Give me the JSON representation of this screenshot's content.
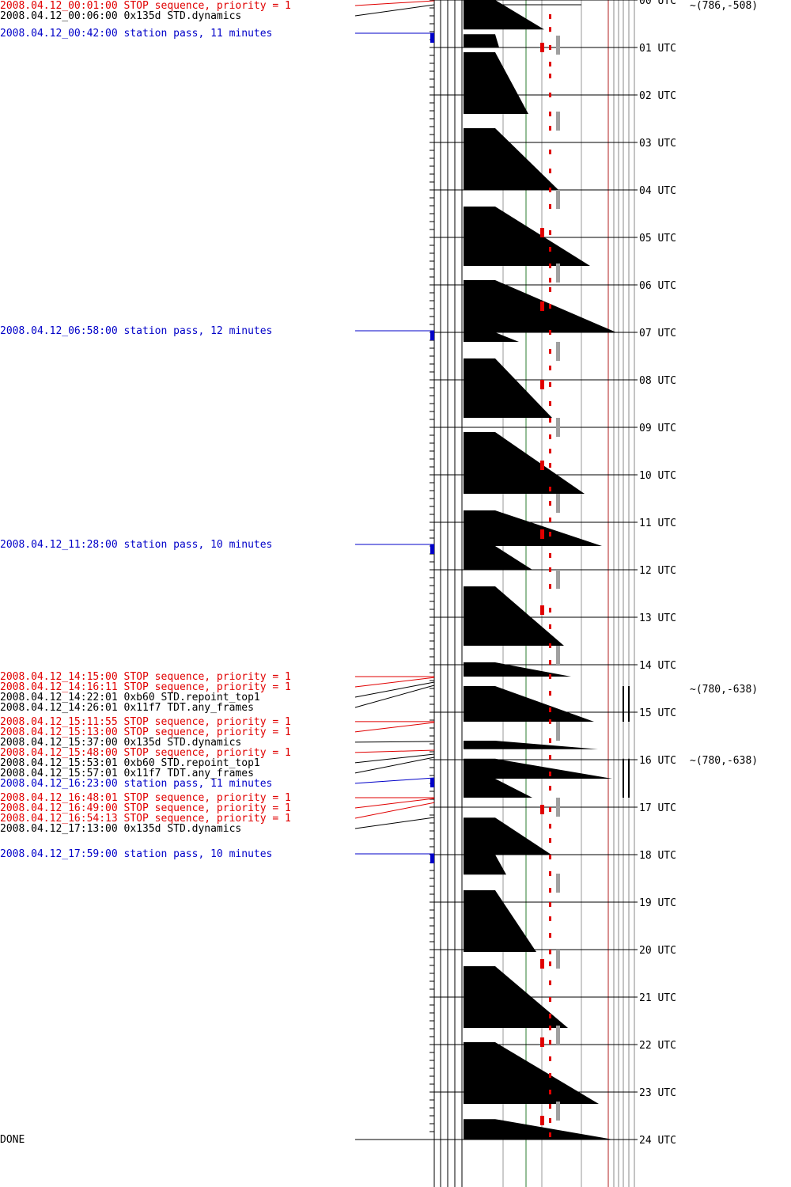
{
  "colors": {
    "stop": "#e00000",
    "command": "#000000",
    "station": "#0000c8",
    "grid_gray": "#999999",
    "grid_green": "#2e7d32",
    "marker_gray": "#a0a0a0",
    "marker_red": "#e00000"
  },
  "events": [
    {
      "time": "00:01:00",
      "text": "2008.04.12_00:01:00 STOP sequence, priority = 1",
      "kind": "stop"
    },
    {
      "time": "00:06:00",
      "text": "2008.04.12_00:06:00 0x135d STD.dynamics",
      "kind": "command"
    },
    {
      "time": "00:42:00",
      "text": "2008.04.12_00:42:00 station pass, 11 minutes",
      "kind": "station"
    },
    {
      "time": "06:58:00",
      "text": "2008.04.12_06:58:00 station pass, 12 minutes",
      "kind": "station"
    },
    {
      "time": "11:28:00",
      "text": "2008.04.12_11:28:00 station pass, 10 minutes",
      "kind": "station"
    },
    {
      "time": "14:15:00",
      "text": "2008.04.12_14:15:00 STOP sequence, priority = 1",
      "kind": "stop"
    },
    {
      "time": "14:16:11",
      "text": "2008.04.12_14:16:11 STOP sequence, priority = 1",
      "kind": "stop"
    },
    {
      "time": "14:22:01",
      "text": "2008.04.12_14:22:01  0xb60 STD.repoint_top1",
      "kind": "command"
    },
    {
      "time": "14:26:01",
      "text": "2008.04.12_14:26:01 0x11f7 TDT.any_frames",
      "kind": "command"
    },
    {
      "time": "15:11:55",
      "text": "2008.04.12_15:11:55 STOP sequence, priority = 1",
      "kind": "stop"
    },
    {
      "time": "15:13:00",
      "text": "2008.04.12_15:13:00 STOP sequence, priority = 1",
      "kind": "stop"
    },
    {
      "time": "15:37:00",
      "text": "2008.04.12_15:37:00 0x135d STD.dynamics",
      "kind": "command"
    },
    {
      "time": "15:48:00",
      "text": "2008.04.12_15:48:00 STOP sequence, priority = 1",
      "kind": "stop"
    },
    {
      "time": "15:53:01",
      "text": "2008.04.12_15:53:01  0xb60 STD.repoint_top1",
      "kind": "command"
    },
    {
      "time": "15:57:01",
      "text": "2008.04.12_15:57:01 0x11f7 TDT.any_frames",
      "kind": "command"
    },
    {
      "time": "16:23:00",
      "text": "2008.04.12_16:23:00 station pass, 11 minutes",
      "kind": "station"
    },
    {
      "time": "16:48:01",
      "text": "2008.04.12_16:48:01 STOP sequence, priority = 1",
      "kind": "stop"
    },
    {
      "time": "16:49:00",
      "text": "2008.04.12_16:49:00 STOP sequence, priority = 1",
      "kind": "stop"
    },
    {
      "time": "16:54:13",
      "text": "2008.04.12_16:54:13 STOP sequence, priority = 1",
      "kind": "stop"
    },
    {
      "time": "17:13:00",
      "text": "2008.04.12_17:13:00 0x135d STD.dynamics",
      "kind": "command"
    },
    {
      "time": "17:59:00",
      "text": "2008.04.12_17:59:00 station pass, 10 minutes",
      "kind": "station"
    },
    {
      "time": "24:00:00",
      "text": "DONE",
      "kind": "command"
    }
  ],
  "hour_labels": [
    "00 UTC",
    "01 UTC",
    "02 UTC",
    "03 UTC",
    "04 UTC",
    "05 UTC",
    "06 UTC",
    "07 UTC",
    "08 UTC",
    "09 UTC",
    "10 UTC",
    "11 UTC",
    "12 UTC",
    "13 UTC",
    "14 UTC",
    "15 UTC",
    "16 UTC",
    "17 UTC",
    "18 UTC",
    "19 UTC",
    "20 UTC",
    "21 UTC",
    "22 UTC",
    "23 UTC",
    "24 UTC"
  ],
  "coordinates": [
    {
      "hour": 0.0,
      "text": "~(786,-508)"
    },
    {
      "hour": 14.4,
      "text": "~(780,-638)"
    },
    {
      "hour": 15.9,
      "text": "~(780,-638)"
    }
  ],
  "chart_data": {
    "type": "timeline",
    "x_unit": "hours UTC",
    "y_range": [
      0,
      24
    ],
    "sawtooth_segments": [
      {
        "start": 0.0,
        "end": 0.62,
        "level_start": 0.0,
        "level_end": 0.62
      },
      {
        "start": 0.72,
        "end": 1.0,
        "level_start": 0.0,
        "level_end": 0.05
      },
      {
        "start": 1.1,
        "end": 2.4,
        "level_start": 0.0,
        "level_end": 0.42
      },
      {
        "start": 2.7,
        "end": 4.0,
        "level_start": 0.0,
        "level_end": 0.8
      },
      {
        "start": 4.35,
        "end": 5.6,
        "level_start": 0.0,
        "level_end": 1.2
      },
      {
        "start": 5.9,
        "end": 7.0,
        "level_start": 0.0,
        "level_end": 1.53
      },
      {
        "start": 7.0,
        "end": 7.2,
        "level_start": 0.0,
        "level_end": 0.3
      },
      {
        "start": 7.55,
        "end": 8.8,
        "level_start": 0.0,
        "level_end": 0.72
      },
      {
        "start": 9.1,
        "end": 10.4,
        "level_start": 0.0,
        "level_end": 1.13
      },
      {
        "start": 10.75,
        "end": 11.5,
        "level_start": 0.0,
        "level_end": 1.35
      },
      {
        "start": 11.5,
        "end": 12.0,
        "level_start": 0.0,
        "level_end": 0.47
      },
      {
        "start": 12.35,
        "end": 13.6,
        "level_start": 0.0,
        "level_end": 0.87
      },
      {
        "start": 13.95,
        "end": 14.25,
        "level_start": 0.0,
        "level_end": 0.96
      },
      {
        "start": 14.45,
        "end": 15.2,
        "level_start": 0.0,
        "level_end": 1.25
      },
      {
        "start": 15.6,
        "end": 15.78,
        "level_start": 0.0,
        "level_end": 1.3
      },
      {
        "start": 15.98,
        "end": 16.4,
        "level_start": 0.0,
        "level_end": 1.48
      },
      {
        "start": 16.4,
        "end": 16.8,
        "level_start": 0.0,
        "level_end": 0.47
      },
      {
        "start": 17.22,
        "end": 18.0,
        "level_start": 0.0,
        "level_end": 0.71
      },
      {
        "start": 18.0,
        "end": 18.42,
        "level_start": 0.0,
        "level_end": 0.14
      },
      {
        "start": 18.75,
        "end": 20.05,
        "level_start": 0.0,
        "level_end": 0.52
      },
      {
        "start": 20.35,
        "end": 21.65,
        "level_start": 0.0,
        "level_end": 0.92
      },
      {
        "start": 21.95,
        "end": 23.25,
        "level_start": 0.0,
        "level_end": 1.31
      },
      {
        "start": 23.57,
        "end": 24.0,
        "level_start": 0.0,
        "level_end": 1.49
      }
    ],
    "red_ticks": [
      {
        "hour": 0.35,
        "thick": false
      },
      {
        "hour": 0.62,
        "thick": false
      },
      {
        "hour": 1.0,
        "thick": true
      },
      {
        "hour": 1.35,
        "thick": false
      },
      {
        "hour": 1.6,
        "thick": false
      },
      {
        "hour": 2.0,
        "thick": false
      },
      {
        "hour": 2.4,
        "thick": false
      },
      {
        "hour": 2.7,
        "thick": false
      },
      {
        "hour": 3.2,
        "thick": false
      },
      {
        "hour": 3.6,
        "thick": false
      },
      {
        "hour": 4.0,
        "thick": false
      },
      {
        "hour": 4.35,
        "thick": false
      },
      {
        "hour": 4.9,
        "thick": true
      },
      {
        "hour": 5.25,
        "thick": false
      },
      {
        "hour": 5.6,
        "thick": false
      },
      {
        "hour": 5.9,
        "thick": false
      },
      {
        "hour": 6.1,
        "thick": false
      },
      {
        "hour": 6.45,
        "thick": true
      },
      {
        "hour": 7.0,
        "thick": false
      },
      {
        "hour": 7.4,
        "thick": false
      },
      {
        "hour": 7.75,
        "thick": false
      },
      {
        "hour": 8.1,
        "thick": true
      },
      {
        "hour": 8.5,
        "thick": false
      },
      {
        "hour": 8.85,
        "thick": false
      },
      {
        "hour": 9.2,
        "thick": false
      },
      {
        "hour": 9.5,
        "thick": false
      },
      {
        "hour": 9.8,
        "thick": true
      },
      {
        "hour": 10.3,
        "thick": false
      },
      {
        "hour": 10.6,
        "thick": false
      },
      {
        "hour": 10.95,
        "thick": false
      },
      {
        "hour": 11.25,
        "thick": true
      },
      {
        "hour": 11.7,
        "thick": false
      },
      {
        "hour": 12.0,
        "thick": false
      },
      {
        "hour": 12.35,
        "thick": false
      },
      {
        "hour": 12.85,
        "thick": true
      },
      {
        "hour": 13.2,
        "thick": false
      },
      {
        "hour": 13.6,
        "thick": false
      },
      {
        "hour": 13.95,
        "thick": false
      },
      {
        "hour": 14.25,
        "thick": false
      },
      {
        "hour": 14.6,
        "thick": false
      },
      {
        "hour": 14.95,
        "thick": false
      },
      {
        "hour": 15.2,
        "thick": false
      },
      {
        "hour": 15.6,
        "thick": false
      },
      {
        "hour": 15.95,
        "thick": false
      },
      {
        "hour": 16.3,
        "thick": false
      },
      {
        "hour": 16.6,
        "thick": false
      },
      {
        "hour": 17.05,
        "thick": true
      },
      {
        "hour": 17.4,
        "thick": false
      },
      {
        "hour": 17.7,
        "thick": false
      },
      {
        "hour": 18.05,
        "thick": false
      },
      {
        "hour": 18.4,
        "thick": false
      },
      {
        "hour": 18.75,
        "thick": false
      },
      {
        "hour": 19.05,
        "thick": false
      },
      {
        "hour": 19.35,
        "thick": false
      },
      {
        "hour": 19.7,
        "thick": false
      },
      {
        "hour": 20.05,
        "thick": false
      },
      {
        "hour": 20.3,
        "thick": true
      },
      {
        "hour": 20.7,
        "thick": false
      },
      {
        "hour": 21.05,
        "thick": false
      },
      {
        "hour": 21.4,
        "thick": false
      },
      {
        "hour": 21.65,
        "thick": false
      },
      {
        "hour": 21.95,
        "thick": true
      },
      {
        "hour": 22.3,
        "thick": false
      },
      {
        "hour": 22.65,
        "thick": false
      },
      {
        "hour": 23.0,
        "thick": false
      },
      {
        "hour": 23.3,
        "thick": false
      },
      {
        "hour": 23.6,
        "thick": true
      },
      {
        "hour": 23.9,
        "thick": false
      }
    ],
    "gray_markers": [
      0.95,
      2.55,
      4.2,
      5.75,
      7.4,
      9.0,
      10.6,
      12.2,
      13.8,
      15.4,
      17.0,
      18.6,
      20.2,
      21.8,
      23.4
    ]
  }
}
